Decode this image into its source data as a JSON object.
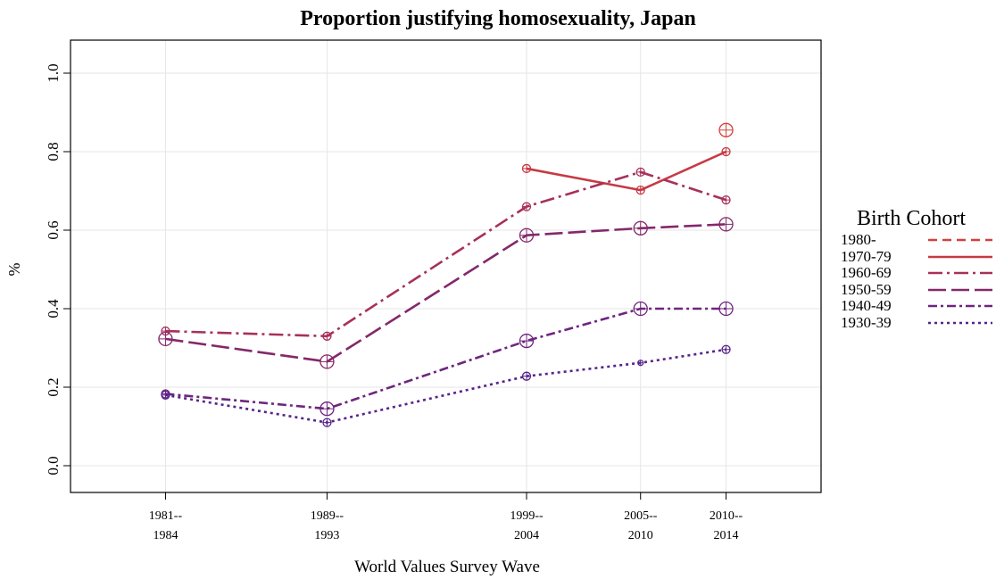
{
  "chart_data": {
    "type": "line",
    "title": "Proportion justifying homosexuality, Japan",
    "xlabel": "World Values Survey Wave",
    "ylabel": "%",
    "x_ticks": [
      {
        "pos": 1982.5,
        "line1": "1981--",
        "line2": "1984"
      },
      {
        "pos": 1991,
        "line1": "1989--",
        "line2": "1993"
      },
      {
        "pos": 2001.5,
        "line1": "1999--",
        "line2": "2004"
      },
      {
        "pos": 2007.5,
        "line1": "2005--",
        "line2": "2010"
      },
      {
        "pos": 2012,
        "line1": "2010--",
        "line2": "2014"
      }
    ],
    "y_ticks": [
      "0.0",
      "0.2",
      "0.4",
      "0.6",
      "0.8",
      "1.0"
    ],
    "ylim": [
      0,
      1
    ],
    "xlim": [
      1977.5,
      2017
    ],
    "grid": true,
    "legend": {
      "title": "Birth Cohort",
      "placement": "right"
    },
    "series": [
      {
        "name": "1980-",
        "color": "#d6403a",
        "dash": "10,6",
        "x": [
          2012
        ],
        "y": [
          0.855
        ],
        "sizes": [
          2
        ]
      },
      {
        "name": "1970-79",
        "color": "#c63a43",
        "dash": "",
        "x": [
          2001.5,
          2007.5,
          2012
        ],
        "y": [
          0.757,
          0.702,
          0.8
        ],
        "sizes": [
          1,
          1,
          1
        ]
      },
      {
        "name": "1960-69",
        "color": "#a8305a",
        "dash": "16,5,3,5",
        "x": [
          1982.5,
          1991,
          2001.5,
          2007.5,
          2012
        ],
        "y": [
          0.343,
          0.33,
          0.66,
          0.748,
          0.677
        ],
        "sizes": [
          1,
          1,
          1,
          1,
          1
        ]
      },
      {
        "name": "1950-59",
        "color": "#84286a",
        "dash": "20,6",
        "x": [
          1982.5,
          1991,
          2001.5,
          2007.5,
          2012
        ],
        "y": [
          0.323,
          0.265,
          0.587,
          0.605,
          0.615
        ],
        "sizes": [
          2,
          2,
          2,
          2,
          2
        ]
      },
      {
        "name": "1940-49",
        "color": "#6e257e",
        "dash": "10,4,3,4",
        "x": [
          1982.5,
          1991,
          2001.5,
          2007.5,
          2012
        ],
        "y": [
          0.183,
          0.145,
          0.318,
          0.4,
          0.4
        ],
        "sizes": [
          1,
          2,
          2,
          2,
          2
        ]
      },
      {
        "name": "1930-39",
        "color": "#56248a",
        "dash": "3,4",
        "x": [
          1982.5,
          1991,
          2001.5,
          2007.5,
          2012
        ],
        "y": [
          0.18,
          0.11,
          0.228,
          0.262,
          0.296
        ],
        "sizes": [
          1,
          1,
          1,
          0,
          1
        ]
      }
    ]
  }
}
